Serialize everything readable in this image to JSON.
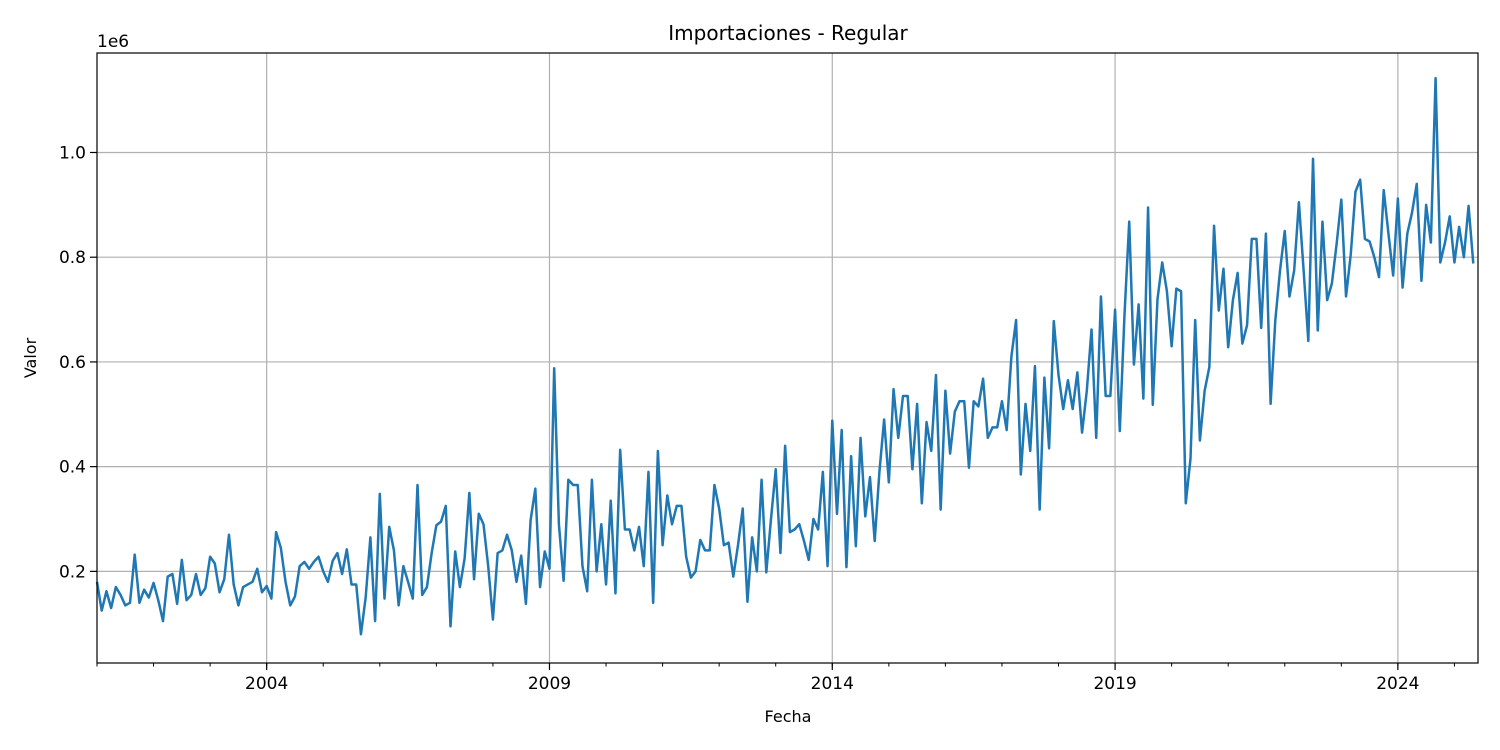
{
  "chart_data": {
    "type": "line",
    "title": "Importaciones - Regular",
    "xlabel": "Fecha",
    "ylabel": "Valor",
    "y_offset_label": "1e6",
    "xlim": [
      "2001-01",
      "2025-06"
    ],
    "ylim": [
      0.025,
      1.19
    ],
    "y_scale": 1000000,
    "x_ticks": [
      {
        "date": "2004-01",
        "label": "2004"
      },
      {
        "date": "2009-01",
        "label": "2009"
      },
      {
        "date": "2014-01",
        "label": "2014"
      },
      {
        "date": "2019-01",
        "label": "2019"
      },
      {
        "date": "2024-01",
        "label": "2024"
      }
    ],
    "y_ticks": [
      {
        "value": 0.2,
        "label": "0.2"
      },
      {
        "value": 0.4,
        "label": "0.4"
      },
      {
        "value": 0.6,
        "label": "0.6"
      },
      {
        "value": 0.8,
        "label": "0.8"
      },
      {
        "value": 1.0,
        "label": "1.0"
      }
    ],
    "grid": true,
    "line_color": "#1f77b4",
    "series": [
      {
        "start": "2001-01",
        "frequency": "monthly",
        "values_millions": [
          0.18,
          0.125,
          0.162,
          0.13,
          0.17,
          0.155,
          0.135,
          0.14,
          0.232,
          0.14,
          0.165,
          0.15,
          0.178,
          0.145,
          0.105,
          0.19,
          0.195,
          0.138,
          0.222,
          0.145,
          0.155,
          0.195,
          0.155,
          0.168,
          0.228,
          0.215,
          0.16,
          0.185,
          0.27,
          0.175,
          0.135,
          0.17,
          0.175,
          0.18,
          0.205,
          0.16,
          0.172,
          0.148,
          0.275,
          0.245,
          0.18,
          0.135,
          0.152,
          0.21,
          0.218,
          0.205,
          0.218,
          0.228,
          0.2,
          0.18,
          0.22,
          0.235,
          0.195,
          0.242,
          0.175,
          0.175,
          0.08,
          0.15,
          0.265,
          0.105,
          0.348,
          0.148,
          0.285,
          0.24,
          0.135,
          0.21,
          0.18,
          0.148,
          0.365,
          0.155,
          0.17,
          0.235,
          0.288,
          0.295,
          0.325,
          0.095,
          0.238,
          0.17,
          0.225,
          0.35,
          0.185,
          0.31,
          0.29,
          0.21,
          0.108,
          0.235,
          0.24,
          0.27,
          0.24,
          0.18,
          0.23,
          0.138,
          0.298,
          0.358,
          0.17,
          0.238,
          0.205,
          0.588,
          0.29,
          0.182,
          0.375,
          0.365,
          0.365,
          0.21,
          0.162,
          0.375,
          0.2,
          0.29,
          0.175,
          0.335,
          0.158,
          0.432,
          0.28,
          0.28,
          0.24,
          0.285,
          0.21,
          0.39,
          0.14,
          0.43,
          0.25,
          0.345,
          0.29,
          0.325,
          0.325,
          0.228,
          0.188,
          0.2,
          0.26,
          0.24,
          0.24,
          0.365,
          0.32,
          0.25,
          0.255,
          0.19,
          0.25,
          0.32,
          0.142,
          0.265,
          0.2,
          0.375,
          0.198,
          0.3,
          0.395,
          0.235,
          0.44,
          0.275,
          0.28,
          0.29,
          0.258,
          0.222,
          0.3,
          0.28,
          0.39,
          0.21,
          0.488,
          0.31,
          0.47,
          0.208,
          0.42,
          0.248,
          0.455,
          0.305,
          0.38,
          0.258,
          0.39,
          0.49,
          0.37,
          0.548,
          0.455,
          0.535,
          0.535,
          0.395,
          0.52,
          0.33,
          0.485,
          0.43,
          0.575,
          0.318,
          0.545,
          0.425,
          0.505,
          0.525,
          0.525,
          0.398,
          0.525,
          0.515,
          0.568,
          0.455,
          0.475,
          0.475,
          0.525,
          0.47,
          0.61,
          0.68,
          0.385,
          0.52,
          0.43,
          0.592,
          0.318,
          0.57,
          0.435,
          0.678,
          0.575,
          0.51,
          0.565,
          0.51,
          0.58,
          0.465,
          0.545,
          0.662,
          0.455,
          0.725,
          0.535,
          0.535,
          0.7,
          0.468,
          0.69,
          0.868,
          0.595,
          0.71,
          0.53,
          0.895,
          0.518,
          0.72,
          0.79,
          0.735,
          0.63,
          0.74,
          0.735,
          0.33,
          0.415,
          0.68,
          0.45,
          0.545,
          0.59,
          0.86,
          0.698,
          0.778,
          0.628,
          0.718,
          0.77,
          0.635,
          0.67,
          0.835,
          0.835,
          0.665,
          0.845,
          0.52,
          0.68,
          0.775,
          0.85,
          0.725,
          0.775,
          0.905,
          0.775,
          0.64,
          0.988,
          0.66,
          0.868,
          0.718,
          0.75,
          0.825,
          0.91,
          0.725,
          0.805,
          0.925,
          0.948,
          0.835,
          0.83,
          0.8,
          0.762,
          0.928,
          0.845,
          0.765,
          0.912,
          0.742,
          0.845,
          0.885,
          0.94,
          0.755,
          0.9,
          0.828,
          1.142,
          0.79,
          0.828,
          0.878,
          0.79,
          0.858,
          0.8,
          0.898,
          0.788
        ]
      }
    ]
  }
}
